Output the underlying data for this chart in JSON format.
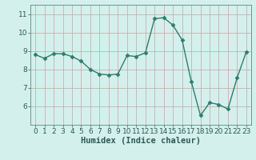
{
  "x": [
    0,
    1,
    2,
    3,
    4,
    5,
    6,
    7,
    8,
    9,
    10,
    11,
    12,
    13,
    14,
    15,
    16,
    17,
    18,
    19,
    20,
    21,
    22,
    23
  ],
  "y": [
    8.8,
    8.6,
    8.85,
    8.85,
    8.7,
    8.45,
    8.0,
    7.75,
    7.7,
    7.75,
    8.75,
    8.7,
    8.9,
    10.75,
    10.8,
    10.4,
    9.6,
    7.35,
    5.5,
    6.2,
    6.1,
    5.85,
    7.55,
    8.95
  ],
  "line_color": "#2d7d6e",
  "marker": "D",
  "marker_size": 2.5,
  "bg_color": "#d4f0ec",
  "plot_bg_color": "#d4f0ec",
  "grid_color": "#c8a8a8",
  "xlabel": "Humidex (Indice chaleur)",
  "ylim": [
    5.0,
    11.5
  ],
  "xlim": [
    -0.5,
    23.5
  ],
  "yticks": [
    6,
    7,
    8,
    9,
    10,
    11
  ],
  "xticks": [
    0,
    1,
    2,
    3,
    4,
    5,
    6,
    7,
    8,
    9,
    10,
    11,
    12,
    13,
    14,
    15,
    16,
    17,
    18,
    19,
    20,
    21,
    22,
    23
  ],
  "xlabel_fontsize": 7.5,
  "tick_fontsize": 6.5,
  "linewidth": 1.0
}
